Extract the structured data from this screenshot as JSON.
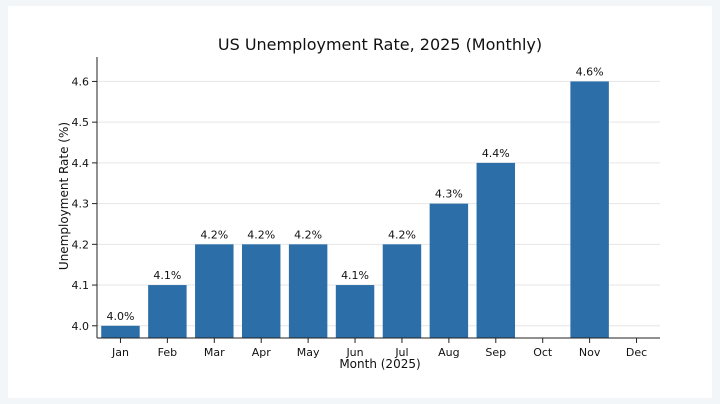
{
  "chart_data": {
    "type": "bar",
    "title": "US Unemployment Rate, 2025 (Monthly)",
    "xlabel": "Month (2025)",
    "ylabel": "Unemployment Rate (%)",
    "categories": [
      "Jan",
      "Feb",
      "Mar",
      "Apr",
      "May",
      "Jun",
      "Jul",
      "Aug",
      "Sep",
      "Oct",
      "Nov",
      "Dec"
    ],
    "values": [
      4.0,
      4.1,
      4.2,
      4.2,
      4.2,
      4.1,
      4.2,
      4.3,
      4.4,
      null,
      4.6,
      null
    ],
    "data_labels": [
      "4.0%",
      "4.1%",
      "4.2%",
      "4.2%",
      "4.2%",
      "4.1%",
      "4.2%",
      "4.3%",
      "4.4%",
      "",
      "4.6%",
      ""
    ],
    "yticks": [
      4.0,
      4.1,
      4.2,
      4.3,
      4.4,
      4.5,
      4.6
    ],
    "ytick_labels": [
      "4.0",
      "4.1",
      "4.2",
      "4.3",
      "4.4",
      "4.5",
      "4.6"
    ],
    "ylim": [
      3.97,
      4.66
    ],
    "grid": "y-only",
    "bar_color": "#2b6ea8"
  }
}
